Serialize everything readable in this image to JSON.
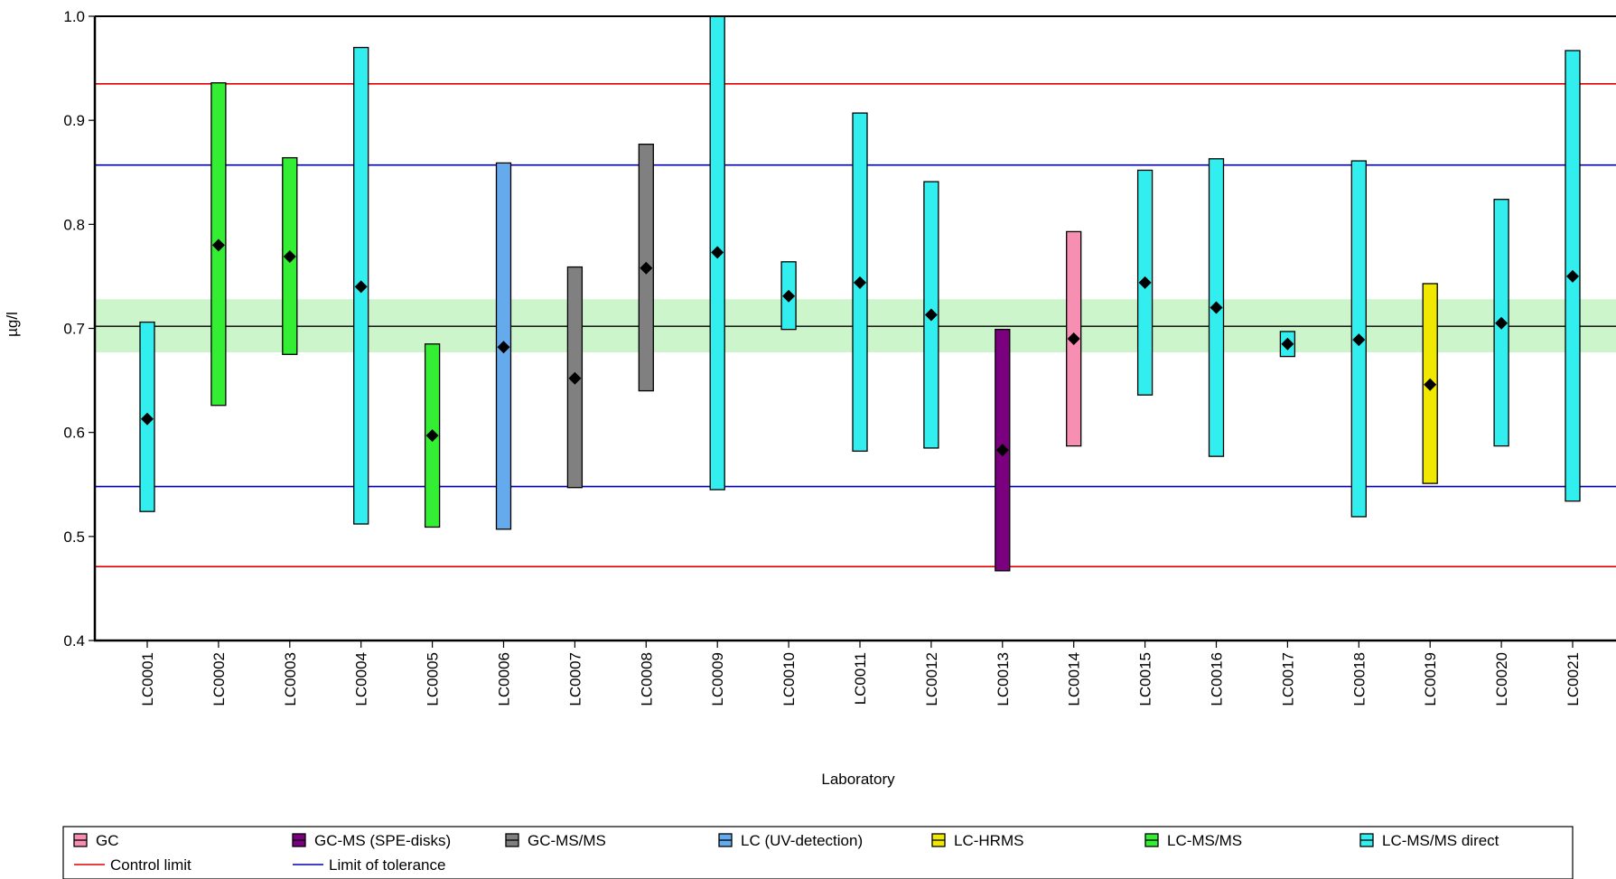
{
  "chart_data": {
    "type": "bar",
    "xlabel": "Laboratory",
    "ylabel": "µg/l",
    "ylim": [
      0.4,
      1.0
    ],
    "yticks": [
      "0.4",
      "0.5",
      "0.6",
      "0.7",
      "0.8",
      "0.9",
      "1.0"
    ],
    "assigned_value": 0.702,
    "assigned_band": [
      0.677,
      0.728
    ],
    "tolerance_limits": [
      0.548,
      0.857
    ],
    "control_limits": [
      0.471,
      0.935
    ],
    "methods": [
      {
        "name": "GC",
        "color": "#f78fb3"
      },
      {
        "name": "GC-MS (SPE-disks)",
        "color": "#7b0080"
      },
      {
        "name": "GC-MS/MS",
        "color": "#808080"
      },
      {
        "name": "LC (UV-detection)",
        "color": "#66aaee"
      },
      {
        "name": "LC-HRMS",
        "color": "#f0e800"
      },
      {
        "name": "LC-MS/MS",
        "color": "#33ee33"
      },
      {
        "name": "LC-MS/MS direct",
        "color": "#33eeee"
      }
    ],
    "lines": [
      {
        "name": "Control limit",
        "color": "#e00000"
      },
      {
        "name": "Limit of tolerance",
        "color": "#0000b0"
      }
    ],
    "points": [
      {
        "lab": "LC0001",
        "method": "LC-MS/MS direct",
        "value": 0.613,
        "low": 0.524,
        "high": 0.706
      },
      {
        "lab": "LC0002",
        "method": "LC-MS/MS",
        "value": 0.78,
        "low": 0.626,
        "high": 0.936
      },
      {
        "lab": "LC0003",
        "method": "LC-MS/MS",
        "value": 0.769,
        "low": 0.675,
        "high": 0.864
      },
      {
        "lab": "LC0004",
        "method": "LC-MS/MS direct",
        "value": 0.74,
        "low": 0.512,
        "high": 0.97
      },
      {
        "lab": "LC0005",
        "method": "LC-MS/MS",
        "value": 0.597,
        "low": 0.509,
        "high": 0.685
      },
      {
        "lab": "LC0006",
        "method": "LC (UV-detection)",
        "value": 0.682,
        "low": 0.507,
        "high": 0.859
      },
      {
        "lab": "LC0007",
        "method": "GC-MS/MS",
        "value": 0.652,
        "low": 0.547,
        "high": 0.759
      },
      {
        "lab": "LC0008",
        "method": "GC-MS/MS",
        "value": 0.758,
        "low": 0.64,
        "high": 0.877
      },
      {
        "lab": "LC0009",
        "method": "LC-MS/MS direct",
        "value": 0.773,
        "low": 0.545,
        "high": 1.0
      },
      {
        "lab": "LC0010",
        "method": "LC-MS/MS direct",
        "value": 0.731,
        "low": 0.699,
        "high": 0.764
      },
      {
        "lab": "LC0011",
        "method": "LC-MS/MS direct",
        "value": 0.744,
        "low": 0.582,
        "high": 0.907
      },
      {
        "lab": "LC0012",
        "method": "LC-MS/MS direct",
        "value": 0.713,
        "low": 0.585,
        "high": 0.841
      },
      {
        "lab": "LC0013",
        "method": "GC-MS (SPE-disks)",
        "value": 0.583,
        "low": 0.467,
        "high": 0.699
      },
      {
        "lab": "LC0014",
        "method": "GC",
        "value": 0.69,
        "low": 0.587,
        "high": 0.793
      },
      {
        "lab": "LC0015",
        "method": "LC-MS/MS direct",
        "value": 0.744,
        "low": 0.636,
        "high": 0.852
      },
      {
        "lab": "LC0016",
        "method": "LC-MS/MS direct",
        "value": 0.72,
        "low": 0.577,
        "high": 0.863
      },
      {
        "lab": "LC0017",
        "method": "LC-MS/MS direct",
        "value": 0.685,
        "low": 0.673,
        "high": 0.697
      },
      {
        "lab": "LC0018",
        "method": "LC-MS/MS direct",
        "value": 0.689,
        "low": 0.519,
        "high": 0.861
      },
      {
        "lab": "LC0019",
        "method": "LC-HRMS",
        "value": 0.646,
        "low": 0.551,
        "high": 0.743
      },
      {
        "lab": "LC0020",
        "method": "LC-MS/MS direct",
        "value": 0.705,
        "low": 0.587,
        "high": 0.824
      },
      {
        "lab": "LC0021",
        "method": "LC-MS/MS direct",
        "value": 0.75,
        "low": 0.534,
        "high": 0.967
      }
    ]
  }
}
